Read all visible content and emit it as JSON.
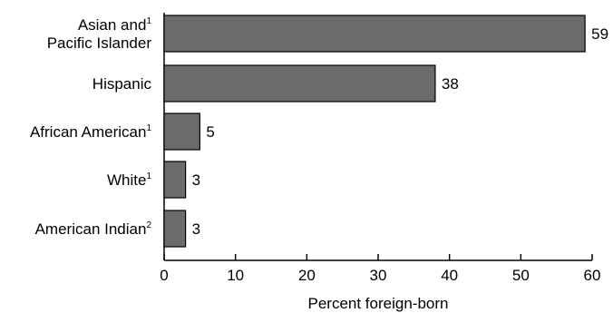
{
  "chart_data": {
    "type": "bar",
    "orientation": "horizontal",
    "categories": [
      {
        "lines": [
          "Asian and",
          "Pacific Islander"
        ],
        "superscript": "1"
      },
      {
        "lines": [
          "Hispanic"
        ],
        "superscript": ""
      },
      {
        "lines": [
          "African American"
        ],
        "superscript": "1"
      },
      {
        "lines": [
          "White"
        ],
        "superscript": "1"
      },
      {
        "lines": [
          "American Indian"
        ],
        "superscript": "2"
      }
    ],
    "values": [
      59,
      38,
      5,
      3,
      3
    ],
    "data_labels": [
      "59",
      "38",
      "5",
      "3",
      "3"
    ],
    "xlabel": "Percent foreign-born",
    "xlim": [
      0,
      60
    ],
    "xticks": [
      0,
      10,
      20,
      30,
      40,
      50,
      60
    ],
    "grid": false,
    "colors": {
      "bar_fill": "#6b6b6b",
      "bar_stroke": "#000000",
      "axis": "#000000"
    }
  }
}
